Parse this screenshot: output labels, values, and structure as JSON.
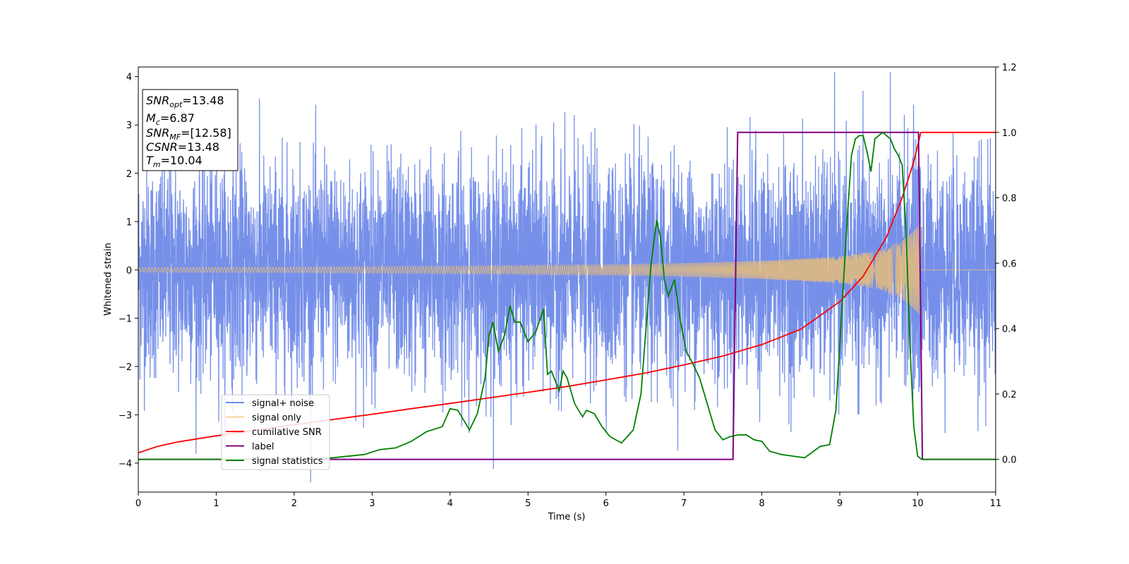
{
  "chart_data": {
    "type": "line",
    "xlabel": "Time (s)",
    "ylabel_left": "Whitened strain",
    "ylabel_right": "",
    "xlim": [
      0,
      11
    ],
    "ylim_left": [
      -4.6,
      4.2
    ],
    "ylim_right": [
      -0.1,
      1.2
    ],
    "x_ticks": [
      0,
      1,
      2,
      3,
      4,
      5,
      6,
      7,
      8,
      9,
      10,
      11
    ],
    "y_left_ticks": [
      4,
      3,
      2,
      1,
      0,
      -1,
      -2,
      -3,
      -4
    ],
    "y_left_tick_labels": [
      "4",
      "3",
      "2",
      "1",
      "0",
      "−1",
      "−2",
      "−3",
      "−4"
    ],
    "y_right_ticks": [
      1.2,
      1.0,
      0.8,
      0.6,
      0.4,
      0.2,
      0.0
    ],
    "y_right_tick_labels": [
      "1.2",
      "1.0",
      "0.8",
      "0.6",
      "0.4",
      "0.2",
      "0.0"
    ],
    "grid": false,
    "legend_position": "lower-left",
    "info_box": {
      "snr_opt": "13.48",
      "mc": "6.87",
      "snr_mf": "[12.58]",
      "csnr": "13.48",
      "tm": "10.04"
    },
    "series": [
      {
        "name": "signal+ noise",
        "color": "#6f8ae8",
        "axis": "left",
        "description_noise_std": 1.0,
        "x_range": [
          0,
          11
        ]
      },
      {
        "name": "signal only",
        "color": "#f5c26b",
        "axis": "left",
        "envelope_x": [
          0,
          2,
          4,
          6,
          7,
          8,
          9,
          9.5,
          9.8,
          10.04
        ],
        "envelope_amp": [
          0.05,
          0.06,
          0.08,
          0.11,
          0.14,
          0.19,
          0.28,
          0.4,
          0.6,
          0.95
        ]
      },
      {
        "name": "cumilative SNR",
        "color": "#ff0000",
        "axis": "right",
        "x": [
          0,
          0.25,
          0.5,
          1,
          1.5,
          2,
          2.5,
          3,
          3.5,
          4,
          4.5,
          5,
          5.5,
          6,
          6.5,
          7,
          7.5,
          8,
          8.5,
          9,
          9.3,
          9.6,
          9.8,
          9.95,
          10.04,
          10.2,
          11
        ],
        "y": [
          0.02,
          0.04,
          0.053,
          0.072,
          0.089,
          0.106,
          0.122,
          0.138,
          0.155,
          0.171,
          0.188,
          0.205,
          0.223,
          0.243,
          0.264,
          0.289,
          0.316,
          0.351,
          0.398,
          0.482,
          0.56,
          0.68,
          0.8,
          0.91,
          1.0,
          1.0,
          1.0
        ]
      },
      {
        "name": "label",
        "color": "#800080",
        "axis": "right",
        "x": [
          0,
          7.63,
          7.69,
          10.01,
          10.06,
          11
        ],
        "y": [
          0,
          0,
          1,
          1,
          0,
          0
        ]
      },
      {
        "name": "signal statistics",
        "color": "#008000",
        "axis": "right",
        "x": [
          0,
          1,
          2,
          2.5,
          2.9,
          3.1,
          3.3,
          3.5,
          3.7,
          3.9,
          4.0,
          4.1,
          4.25,
          4.35,
          4.45,
          4.5,
          4.55,
          4.62,
          4.7,
          4.77,
          4.83,
          4.9,
          5.0,
          5.1,
          5.2,
          5.25,
          5.3,
          5.4,
          5.45,
          5.5,
          5.6,
          5.7,
          5.75,
          5.85,
          5.95,
          6.05,
          6.2,
          6.35,
          6.45,
          6.52,
          6.58,
          6.65,
          6.7,
          6.75,
          6.8,
          6.88,
          6.95,
          7.03,
          7.1,
          7.2,
          7.3,
          7.4,
          7.5,
          7.6,
          7.7,
          7.8,
          7.9,
          8.0,
          8.1,
          8.25,
          8.4,
          8.55,
          8.75,
          8.87,
          8.95,
          9.0,
          9.05,
          9.1,
          9.15,
          9.2,
          9.25,
          9.3,
          9.35,
          9.4,
          9.45,
          9.5,
          9.55,
          9.6,
          9.65,
          9.7,
          9.75,
          9.8,
          9.85,
          9.9,
          9.95,
          10.0,
          10.05,
          10.15,
          11
        ],
        "y": [
          0.0,
          0.0,
          0.0,
          0.005,
          0.015,
          0.03,
          0.035,
          0.055,
          0.085,
          0.1,
          0.155,
          0.15,
          0.09,
          0.14,
          0.25,
          0.38,
          0.42,
          0.33,
          0.38,
          0.47,
          0.42,
          0.42,
          0.36,
          0.39,
          0.46,
          0.26,
          0.27,
          0.21,
          0.27,
          0.25,
          0.17,
          0.13,
          0.15,
          0.14,
          0.1,
          0.07,
          0.05,
          0.09,
          0.2,
          0.42,
          0.6,
          0.73,
          0.68,
          0.55,
          0.5,
          0.55,
          0.43,
          0.33,
          0.3,
          0.25,
          0.17,
          0.09,
          0.06,
          0.07,
          0.075,
          0.075,
          0.06,
          0.055,
          0.025,
          0.015,
          0.01,
          0.005,
          0.04,
          0.045,
          0.15,
          0.35,
          0.55,
          0.75,
          0.93,
          0.98,
          0.99,
          0.99,
          0.94,
          0.88,
          0.98,
          0.99,
          1.0,
          0.99,
          0.98,
          0.95,
          0.93,
          0.9,
          0.7,
          0.35,
          0.1,
          0.01,
          0.0,
          0.0,
          0.0
        ]
      }
    ]
  }
}
